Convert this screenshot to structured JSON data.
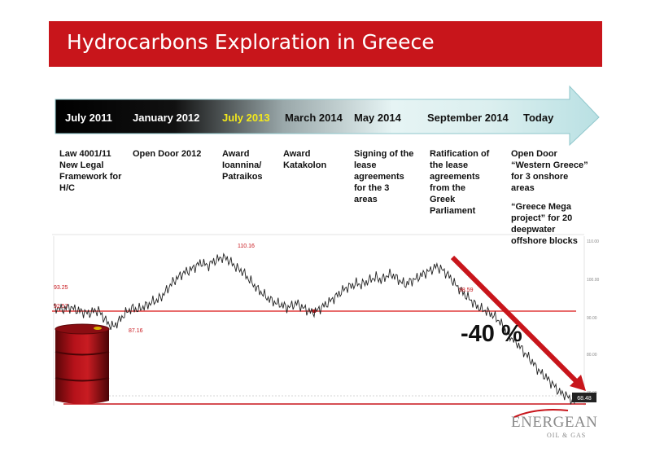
{
  "header": {
    "title": "Hydrocarbons Exploration in Greece"
  },
  "timeline": [
    {
      "label": "July 2011",
      "color": "#ffffff",
      "desc": [
        "Law 4001/11",
        "New Legal",
        "Framework for",
        "H/C"
      ]
    },
    {
      "label": "January 2012",
      "color": "#ffffff",
      "desc": [
        "Open Door 2012"
      ]
    },
    {
      "label": "July 2013",
      "color": "#f2e81c",
      "desc": [
        "Award",
        "Ioannina/",
        "Patraikos"
      ]
    },
    {
      "label": "March 2014",
      "color": "#111111",
      "desc": [
        "Award",
        "Katakolon"
      ]
    },
    {
      "label": "May 2014",
      "color": "#111111",
      "desc": [
        "Signing of the",
        "lease",
        "agreements",
        "for the 3",
        "areas"
      ]
    },
    {
      "label": "September 2014",
      "color": "#111111",
      "desc": [
        "Ratification of",
        "the lease",
        "agreements",
        "from the",
        "Greek",
        "Parliament"
      ]
    },
    {
      "label": "Today",
      "color": "#111111",
      "desc": [
        "Open Door",
        "“Western Greece”",
        "for 3 onshore",
        "areas",
        "",
        "“Greece Mega",
        "project” for 20",
        "deepwater",
        "offshore blocks"
      ]
    }
  ],
  "chart_data": {
    "type": "line",
    "series": [
      {
        "values": [
          92.5,
          92.2,
          91.9,
          92.6,
          92.1,
          91.6,
          91.2,
          90.8,
          91.4,
          91.7,
          89.8,
          88.0,
          87.2,
          88.5,
          90.2,
          91.6,
          92.3,
          91.8,
          92.6,
          93.2,
          94.1,
          94.6,
          95.8,
          97.6,
          99.4,
          100.6,
          101.8,
          102.4,
          103.1,
          104.2,
          104.8,
          103.8,
          104.9,
          105.6,
          106.2,
          105.8,
          104.5,
          103.2,
          102.4,
          100.8,
          99.2,
          97.6,
          96.4,
          95.2,
          94.3,
          93.6,
          93.2,
          92.4,
          92.9,
          93.7,
          92.6,
          91.8,
          91.1,
          91.5,
          92.5,
          93.4,
          94.5,
          95.6,
          96.8,
          97.9,
          98.3,
          99.1,
          98.7,
          99.4,
          100.2,
          100.8,
          99.9,
          101.0,
          101.6,
          100.7,
          99.5,
          98.8,
          99.7,
          100.3,
          101.2,
          102.0,
          102.6,
          103.7,
          103.1,
          102.0,
          100.6,
          98.7,
          97.3,
          95.8,
          94.6,
          93.2,
          92.2,
          91.6,
          90.9,
          89.8,
          88.5,
          86.2,
          84.6,
          83.1,
          81.8,
          79.9,
          78.4,
          76.6,
          74.8,
          73.7,
          72.3,
          70.8,
          69.2,
          68.6,
          67.6,
          66.6
        ]
      }
    ],
    "annotations": [
      {
        "text": "93.25",
        "color": "#c8151b"
      },
      {
        "text": "92.57",
        "color": "#c8151b"
      },
      {
        "text": "87.16",
        "color": "#c8151b"
      },
      {
        "text": "110.16",
        "color": "#c8151b"
      },
      {
        "text": "98.59",
        "color": "#c8151b"
      }
    ],
    "yticks": [
      "110.00",
      "100.00",
      "90.00",
      "80.00",
      "70.00"
    ],
    "last_value": "68.48",
    "trend_label": "-40 %",
    "ylim": [
      66,
      112
    ],
    "grid": false
  },
  "barrel": {
    "color": "#b5121a"
  },
  "logo": {
    "name": "ENERGEAN",
    "sub": "OIL & GAS"
  }
}
